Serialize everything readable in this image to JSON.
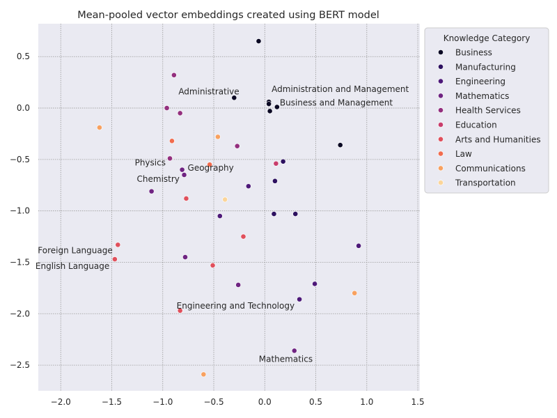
{
  "chart_data": {
    "type": "scatter",
    "title": "Mean-pooled vector embeddings created using BERT model",
    "xlabel": "",
    "ylabel": "",
    "xlim": [
      -2.22,
      1.52
    ],
    "ylim": [
      -2.75,
      0.82
    ],
    "xticks": [
      -2.0,
      -1.5,
      -1.0,
      -0.5,
      0.0,
      0.5,
      1.0,
      1.5
    ],
    "xtick_labels": [
      "−2.0",
      "−1.5",
      "−1.0",
      "−0.5",
      "0.0",
      "0.5",
      "1.0",
      "1.5"
    ],
    "yticks": [
      0.5,
      0.0,
      -0.5,
      -1.0,
      -1.5,
      -2.0,
      -2.5
    ],
    "ytick_labels": [
      "0.5",
      "0.0",
      "−0.5",
      "−1.0",
      "−1.5",
      "−2.0",
      "−2.5"
    ],
    "grid": true,
    "legend_title": "Knowledge Category",
    "legend_placement": "outside-upper-right",
    "series": [
      {
        "name": "Business",
        "color": "#0b0924",
        "points": [
          [
            -0.06,
            0.65
          ],
          [
            -0.3,
            0.1
          ],
          [
            0.04,
            0.06
          ],
          [
            0.04,
            0.04
          ],
          [
            0.12,
            0.01
          ],
          [
            0.05,
            -0.03
          ],
          [
            0.74,
            -0.36
          ]
        ]
      },
      {
        "name": "Manufacturing",
        "color": "#2d1160",
        "points": [
          [
            0.18,
            -0.52
          ],
          [
            0.1,
            -0.71
          ],
          [
            0.3,
            -1.03
          ],
          [
            0.09,
            -1.03
          ]
        ]
      },
      {
        "name": "Engineering",
        "color": "#4d1979",
        "points": [
          [
            -0.16,
            -0.76
          ],
          [
            -0.44,
            -1.05
          ],
          [
            0.92,
            -1.34
          ],
          [
            0.49,
            -1.71
          ],
          [
            0.34,
            -1.86
          ]
        ]
      },
      {
        "name": "Mathematics",
        "color": "#6f2482",
        "points": [
          [
            -0.81,
            -0.6
          ],
          [
            -0.79,
            -0.65
          ],
          [
            -1.11,
            -0.81
          ],
          [
            -0.78,
            -1.45
          ],
          [
            -0.26,
            -1.72
          ],
          [
            0.29,
            -2.36
          ]
        ]
      },
      {
        "name": "Health Services",
        "color": "#932f7e",
        "points": [
          [
            -0.89,
            0.32
          ],
          [
            -0.96,
            0.0
          ],
          [
            -0.83,
            -0.05
          ],
          [
            -0.93,
            -0.49
          ],
          [
            -0.27,
            -0.37
          ]
        ]
      },
      {
        "name": "Education",
        "color": "#c83d6c",
        "points": [
          [
            0.11,
            -0.54
          ]
        ]
      },
      {
        "name": "Arts and Humanities",
        "color": "#e0505c",
        "points": [
          [
            -1.44,
            -1.33
          ],
          [
            -1.47,
            -1.47
          ],
          [
            -0.77,
            -0.88
          ],
          [
            -0.21,
            -1.25
          ],
          [
            -0.51,
            -1.53
          ],
          [
            -0.83,
            -1.97
          ]
        ]
      },
      {
        "name": "Law",
        "color": "#f16c4e",
        "points": [
          [
            -0.91,
            -0.32
          ],
          [
            -0.54,
            -0.55
          ]
        ]
      },
      {
        "name": "Communications",
        "color": "#f8a160",
        "points": [
          [
            -1.62,
            -0.19
          ],
          [
            -0.46,
            -0.28
          ],
          [
            0.88,
            -1.8
          ],
          [
            -0.6,
            -2.59
          ]
        ]
      },
      {
        "name": "Transportation",
        "color": "#fbd59a",
        "points": [
          [
            -0.39,
            -0.89
          ]
        ]
      }
    ],
    "annotations": [
      {
        "text": "Administrative",
        "x": -0.3,
        "y": 0.1,
        "dx": -80,
        "dy": -5
      },
      {
        "text": "Administration and Management",
        "x": 0.04,
        "y": 0.06,
        "dx": 4,
        "dy": -14
      },
      {
        "text": "Business and Management",
        "x": 0.12,
        "y": 0.01,
        "dx": 4,
        "dy": -2
      },
      {
        "text": "Physics",
        "x": -0.81,
        "y": -0.6,
        "dx": -68,
        "dy": -6
      },
      {
        "text": "Geography",
        "x": -0.79,
        "y": -0.65,
        "dx": 5,
        "dy": -6
      },
      {
        "text": "Chemistry",
        "x": -0.79,
        "y": -0.65,
        "dx": -68,
        "dy": 10
      },
      {
        "text": "Foreign Language",
        "x": -1.44,
        "y": -1.33,
        "dx": -115,
        "dy": 12
      },
      {
        "text": "English Language",
        "x": -1.47,
        "y": -1.47,
        "dx": -114,
        "dy": 14
      },
      {
        "text": "Engineering and Technology",
        "x": -0.83,
        "y": -1.97,
        "dx": -5,
        "dy": -3
      },
      {
        "text": "Mathematics",
        "x": 0.29,
        "y": -2.36,
        "dx": -51,
        "dy": 16
      }
    ]
  }
}
